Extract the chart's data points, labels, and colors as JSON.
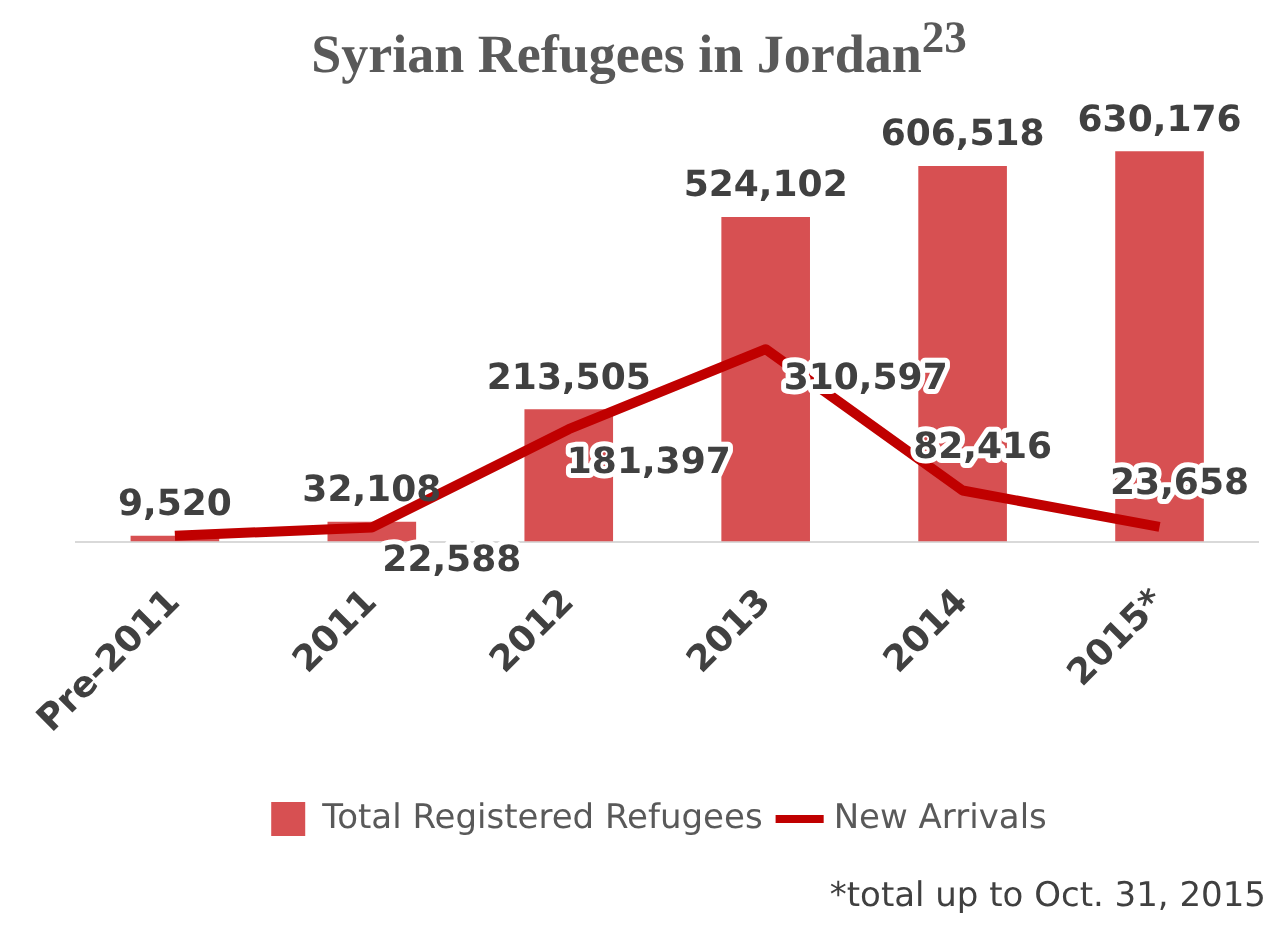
{
  "chart_data": {
    "type": "bar",
    "title": "Syrian Refugees in Jordan$^{23}$",
    "categories": [
      "Pre-2011",
      "2011",
      "2012",
      "2013",
      "2014",
      "2015*"
    ],
    "series": [
      {
        "name": "Total Registered Refugees",
        "color": "#d75052",
        "values": [
          9520,
          32108,
          213505,
          524102,
          606518,
          630176
        ],
        "value_labels": [
          "9,520",
          "32,108",
          "213,505",
          "524,102",
          "606,518",
          "630,176"
        ]
      },
      {
        "name": "New Arrivals",
        "type": "line",
        "color": "#c00000",
        "values": [
          9520,
          22588,
          181397,
          310597,
          82416,
          23658
        ],
        "value_labels": [
          null,
          "22,588",
          "181,397",
          "310,597",
          "82,416",
          "23,658"
        ]
      }
    ],
    "legend": "bottom",
    "grid": false,
    "marker": "none",
    "annotations": [
      "*total up to Oct. 31, 2015"
    ]
  }
}
